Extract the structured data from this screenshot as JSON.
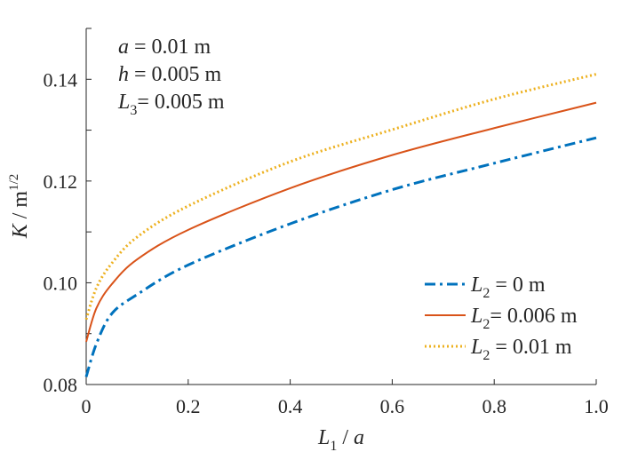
{
  "chart_data": {
    "type": "line",
    "title": "",
    "xlabel": {
      "main": "L",
      "sub": "1",
      "rest": " / a"
    },
    "ylabel": {
      "main": "K",
      "rest": " / m",
      "sup": "1/2"
    },
    "xlim": [
      0,
      1.0
    ],
    "ylim": [
      0.08,
      0.15
    ],
    "xticks": [
      0,
      0.2,
      0.4,
      0.6,
      0.8,
      1.0
    ],
    "xtick_labels": [
      "0",
      "0.2",
      "0.4",
      "0.6",
      "0.8",
      "1.0"
    ],
    "yticks": [
      0.08,
      0.09,
      0.1,
      0.11,
      0.12,
      0.13,
      0.14
    ],
    "ytick_labels": [
      "0.08",
      "",
      "0.10",
      "",
      "0.12",
      "",
      "0.14"
    ],
    "grid": false,
    "legend_position": "bottom-right",
    "annotations": [
      {
        "var": "a",
        "sub": "",
        "text": " = 0.01 m"
      },
      {
        "var": "h",
        "sub": "",
        "text": " = 0.005 m"
      },
      {
        "var": "L",
        "sub": "3",
        "text": "= 0.005 m"
      }
    ],
    "x": [
      0,
      0.02,
      0.05,
      0.1,
      0.2,
      0.4,
      0.6,
      0.8,
      1.0
    ],
    "series": [
      {
        "name": "L2 = 0 m",
        "label_var": "L",
        "label_sub": "2",
        "label_text": " = 0 m",
        "color": "#0072BD",
        "dash": "dashdot",
        "values": [
          0.0815,
          0.088,
          0.0939,
          0.0977,
          0.1035,
          0.1116,
          0.1183,
          0.1235,
          0.1285
        ]
      },
      {
        "name": "L2 = 0.006 m",
        "label_var": "L",
        "label_sub": "2",
        "label_text": "= 0.006 m",
        "color": "#D95319",
        "dash": "solid",
        "values": [
          0.0884,
          0.095,
          0.0997,
          0.1046,
          0.1104,
          0.1186,
          0.1251,
          0.1304,
          0.1354
        ]
      },
      {
        "name": "L2 = 0.01 m",
        "label_var": "L",
        "label_sub": "2",
        "label_text": " = 0.01 m",
        "color": "#EDB120",
        "dash": "dotted",
        "values": [
          0.0928,
          0.099,
          0.1038,
          0.109,
          0.1151,
          0.1238,
          0.1301,
          0.1361,
          0.141
        ]
      }
    ]
  }
}
